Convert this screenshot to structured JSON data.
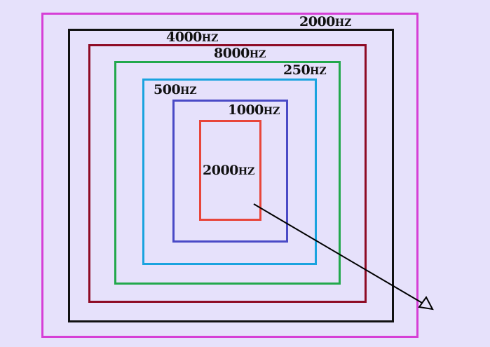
{
  "colors": {
    "background": "#e6e1fb",
    "outer_2000": "#d63fd6",
    "band_4000": "#111111",
    "band_8000": "#8e0b25",
    "band_250": "#22a84c",
    "band_500": "#1aa3df",
    "band_1000": "#4a4ac6",
    "inner_2000": "#e8453a",
    "arrow": "#000000"
  },
  "labels": {
    "outer_2000": {
      "value": "2000",
      "unit": "HZ"
    },
    "band_4000": {
      "value": "4000",
      "unit": "HZ"
    },
    "band_8000": {
      "value": "8000",
      "unit": "HZ"
    },
    "band_250": {
      "value": "250",
      "unit": "HZ"
    },
    "band_500": {
      "value": "500",
      "unit": "HZ"
    },
    "band_1000": {
      "value": "1000",
      "unit": "HZ"
    },
    "inner_2000": {
      "value": "2000",
      "unit": "HZ"
    }
  }
}
